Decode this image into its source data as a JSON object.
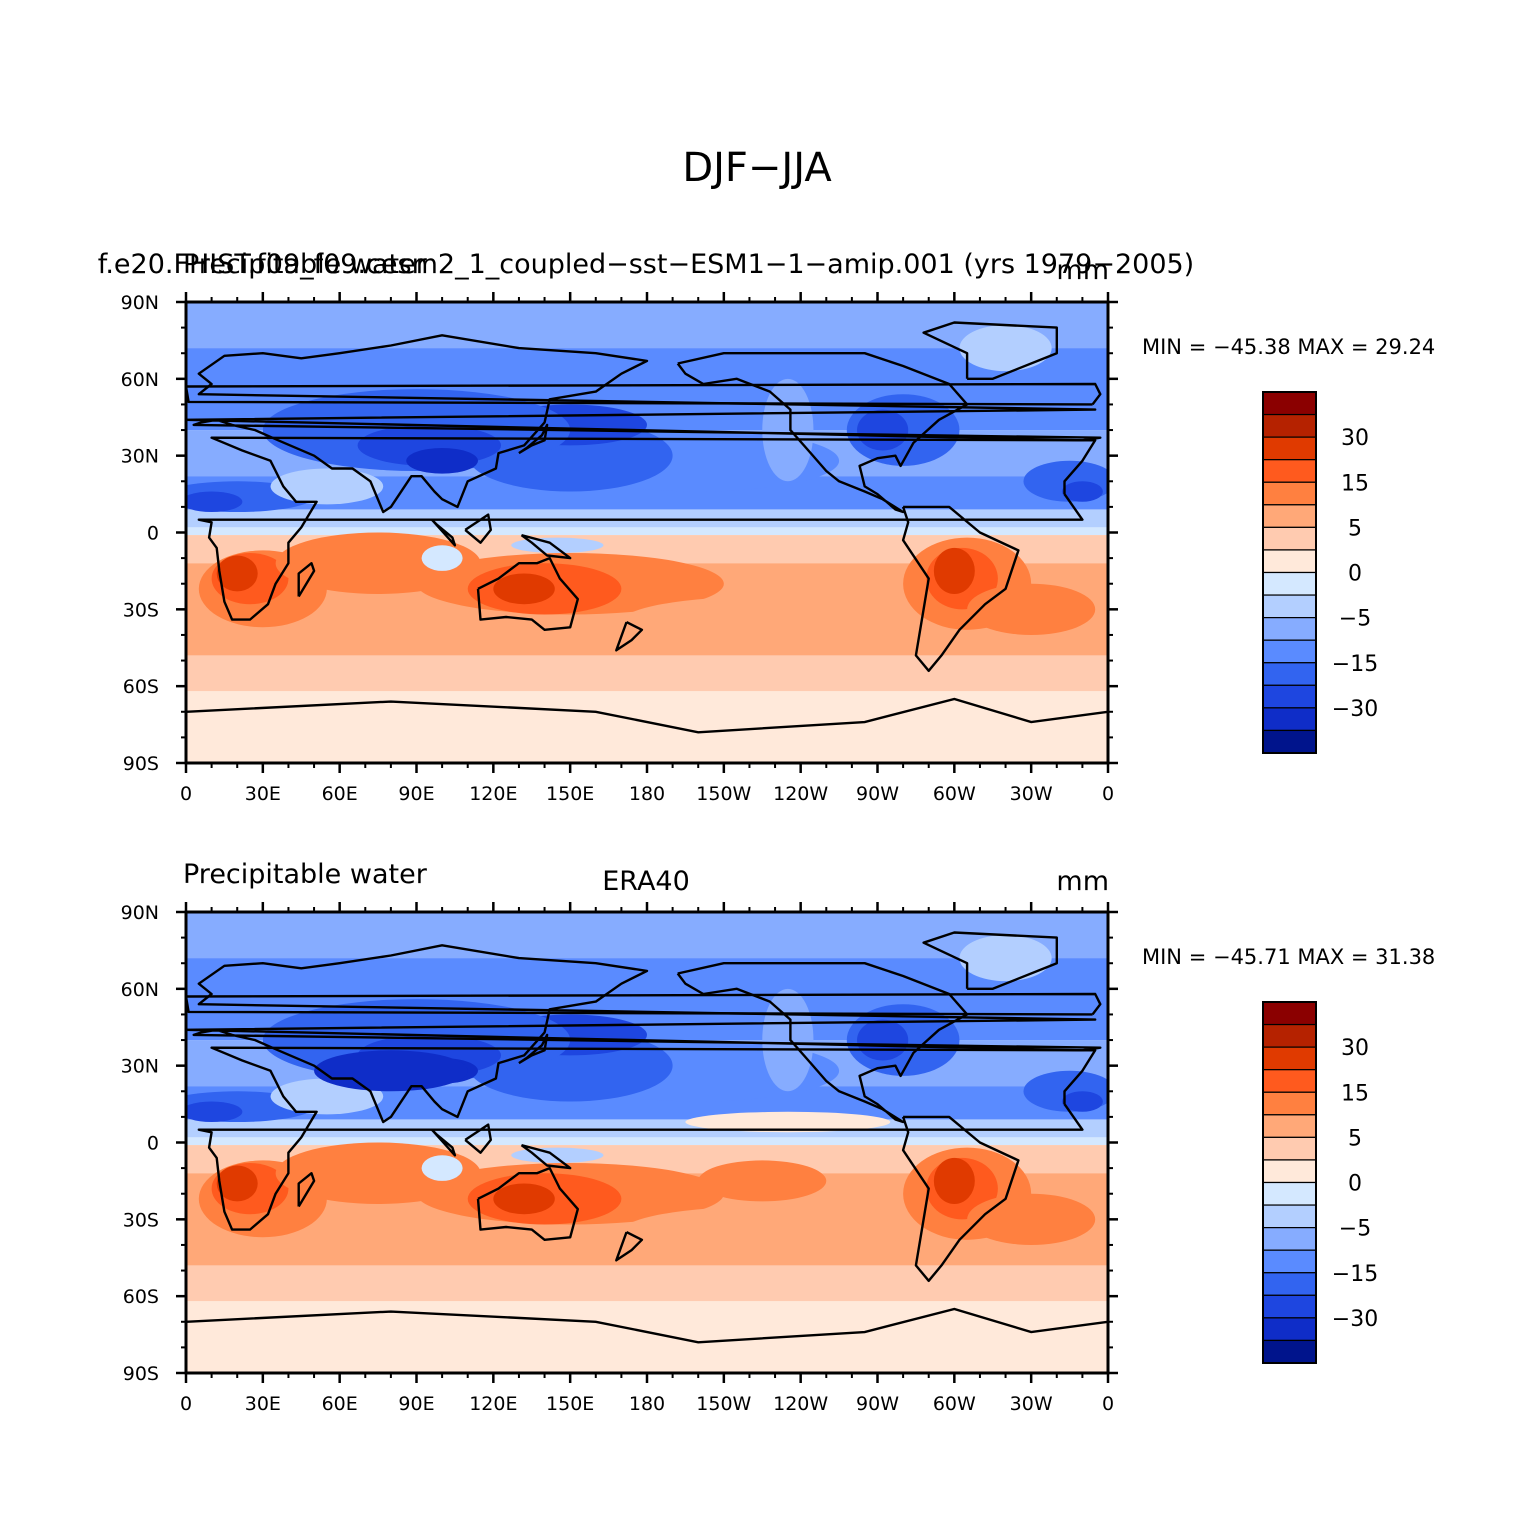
{
  "main_title": "DJF−JJA",
  "panels": [
    {
      "left_title": "Precipitable water",
      "center_title": "f.e20.FHIST.f09_f09.cesm2_1_coupled−sst−ESM1−1−amip.001 (yrs 1979−2005)",
      "units": "mm",
      "min_max": "MIN = −45.38 MAX =   29.24"
    },
    {
      "left_title": "Precipitable water",
      "center_title": "ERA40",
      "units": "mm",
      "min_max": "MIN = −45.71 MAX =   31.38"
    }
  ],
  "lon_labels": [
    "0",
    "30E",
    "60E",
    "90E",
    "120E",
    "150E",
    "180",
    "150W",
    "120W",
    "90W",
    "60W",
    "30W",
    "0"
  ],
  "lat_labels": [
    "90N",
    "60N",
    "30N",
    "0",
    "30S",
    "60S",
    "90S"
  ],
  "colorbar": {
    "labels": [
      "30",
      "15",
      "5",
      "0",
      "−5",
      "−15",
      "−30"
    ],
    "colors": [
      "#8b0000",
      "#b52200",
      "#e03a00",
      "#ff5a1e",
      "#ff8040",
      "#ffa878",
      "#ffcbb0",
      "#ffe9da",
      "#d4e8ff",
      "#b3cfff",
      "#86acff",
      "#5a8bff",
      "#3264f0",
      "#1e46e0",
      "#0f2dc8",
      "#00148c"
    ]
  },
  "chart_data": {
    "type": "heatmap",
    "title": "DJF−JJA",
    "variable": "Precipitable water",
    "units": "mm",
    "contour_levels": [
      -30,
      -15,
      -5,
      0,
      5,
      15,
      30
    ],
    "xlim": [
      0,
      360
    ],
    "ylim": [
      -90,
      90
    ],
    "x_ticks": [
      "0",
      "30E",
      "60E",
      "90E",
      "120E",
      "150E",
      "180",
      "150W",
      "120W",
      "90W",
      "60W",
      "30W",
      "0"
    ],
    "y_ticks": [
      "90N",
      "60N",
      "30N",
      "0",
      "30S",
      "60S",
      "90S"
    ],
    "panels": [
      {
        "name": "f.e20.FHIST.f09_f09.cesm2_1_coupled−sst−ESM1−1−amip.001 (yrs 1979−2005)",
        "min": -45.38,
        "max": 29.24
      },
      {
        "name": "ERA40",
        "min": -45.71,
        "max": 31.38
      }
    ]
  }
}
